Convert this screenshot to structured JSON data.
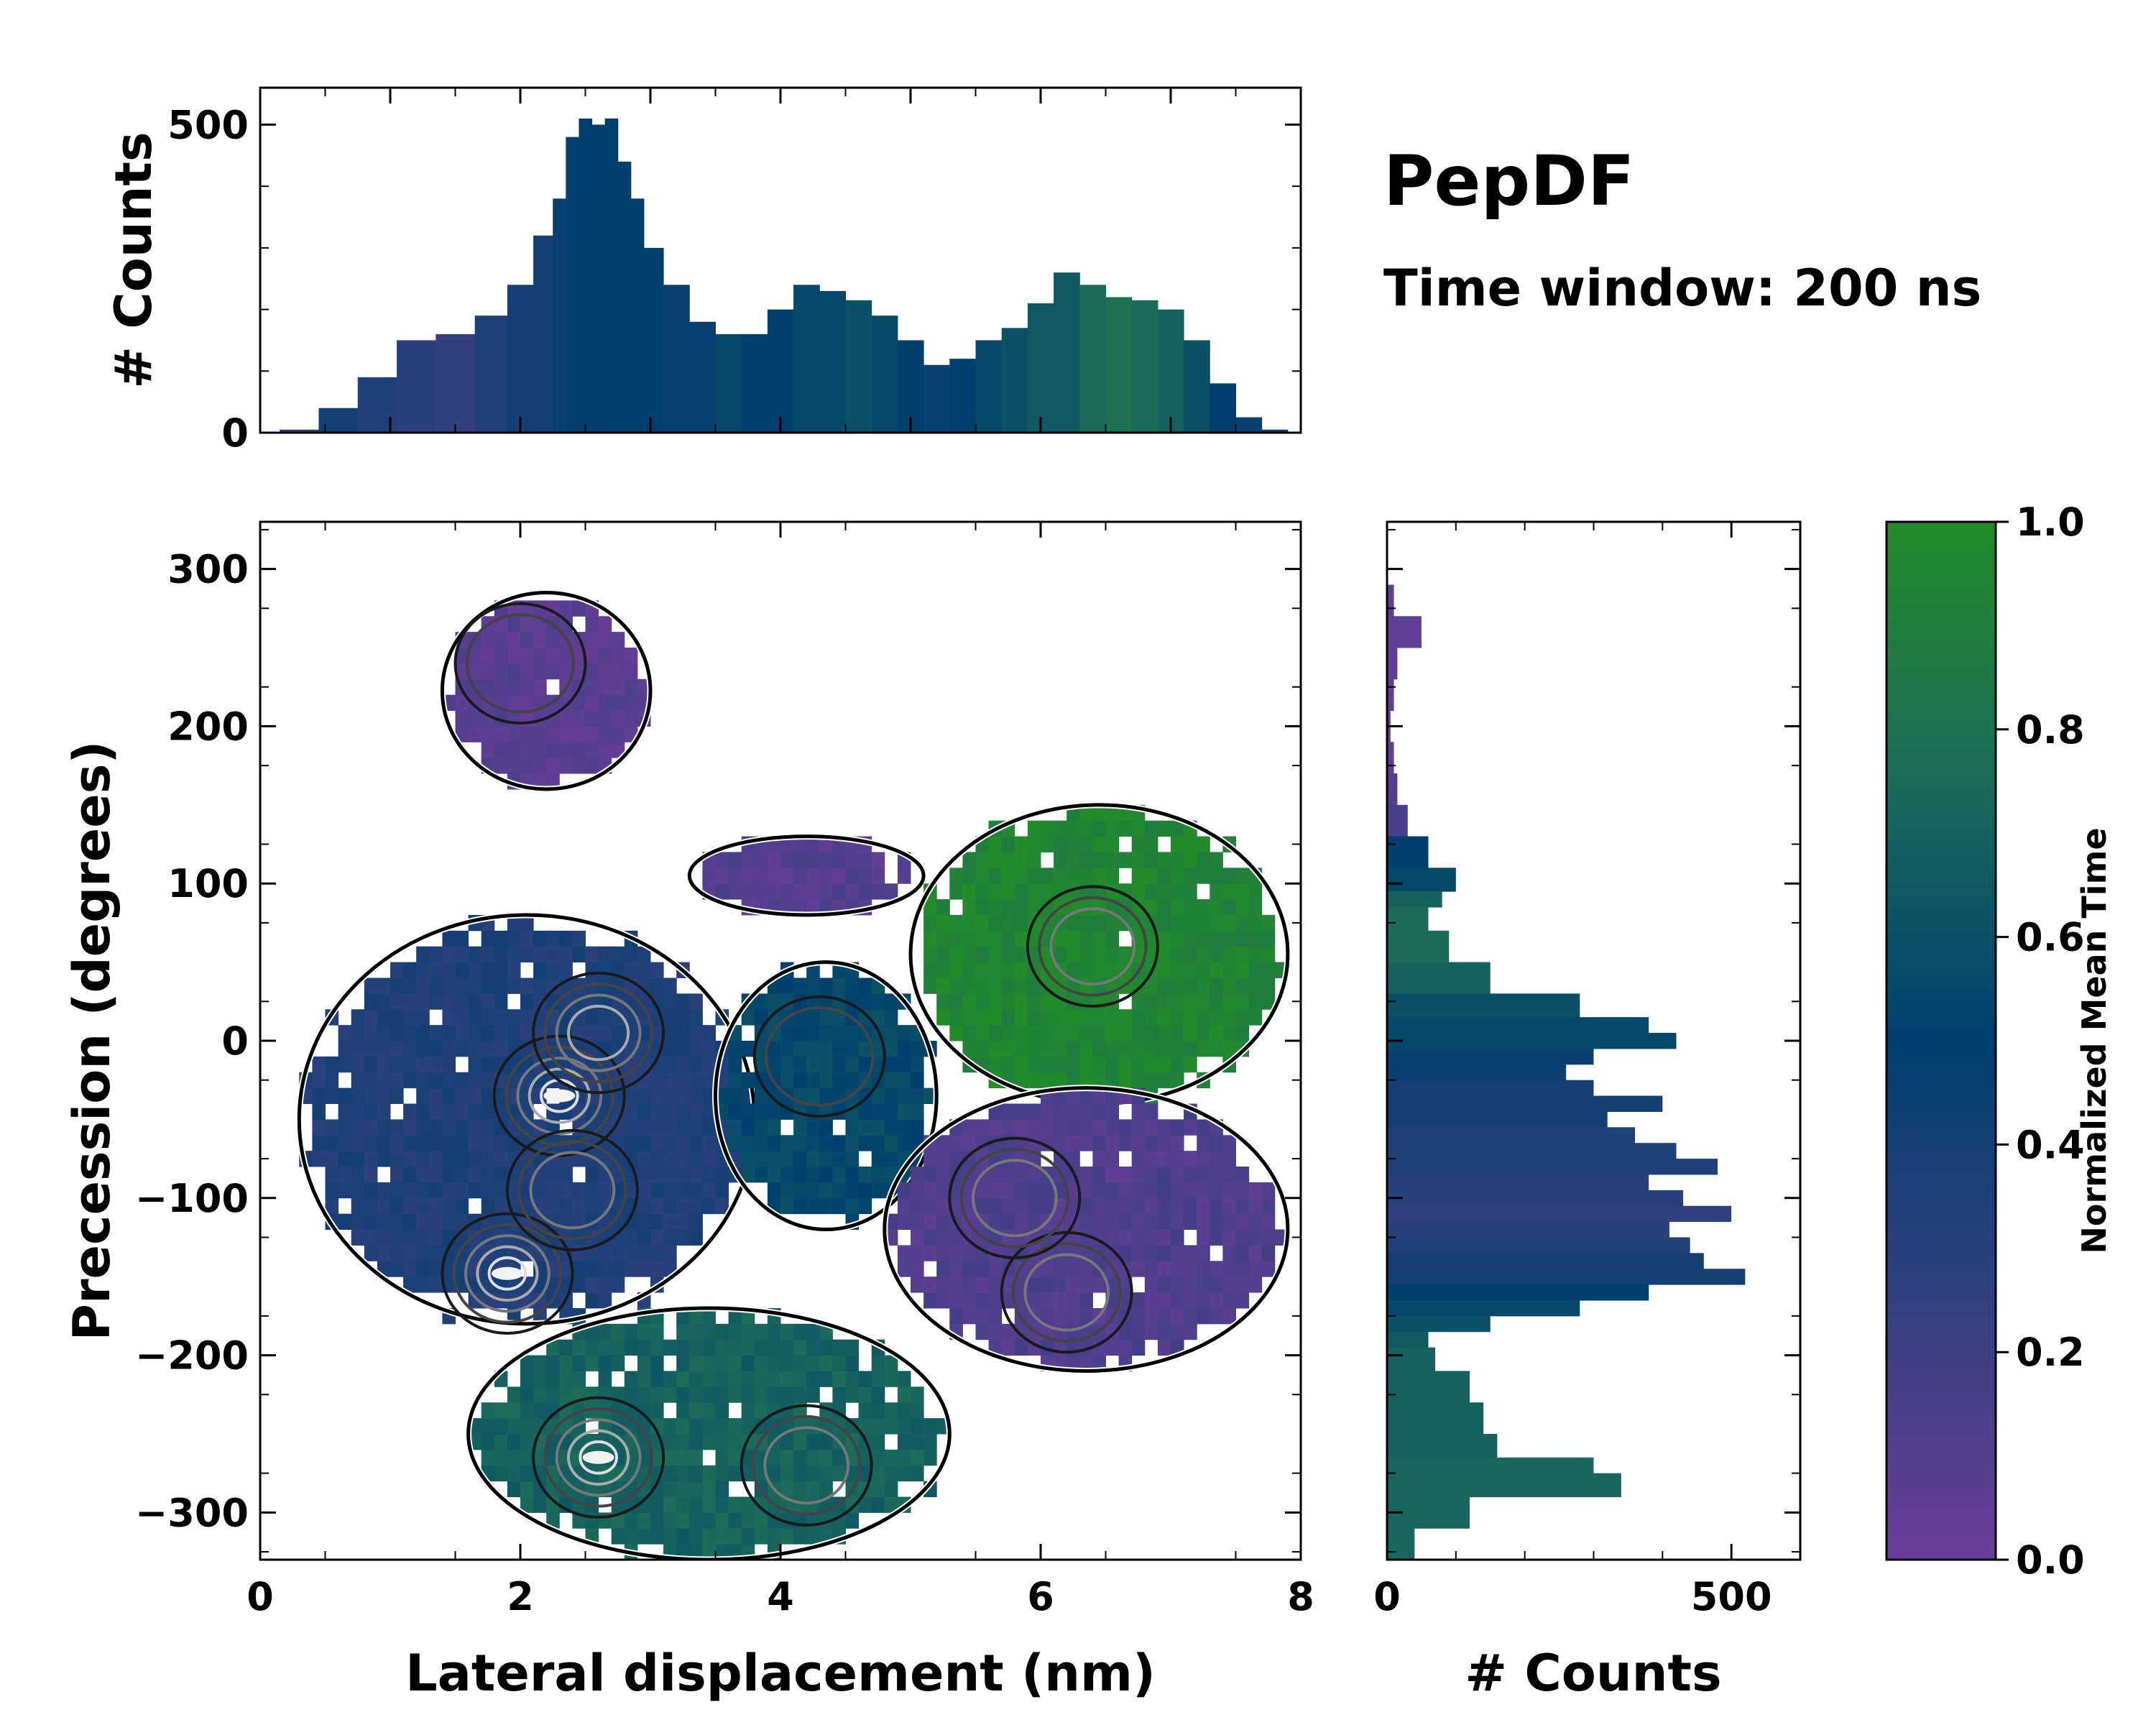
{
  "colors": {
    "cmap": [
      "#6a3d9a",
      "#33407f",
      "#003f6e",
      "#1b6b5a",
      "#238b2a"
    ],
    "contour_outer": "#000000",
    "contour_levels": [
      "#1a1a1a",
      "#444444",
      "#777777",
      "#aaaaaa",
      "#dddddd"
    ]
  },
  "annotation": {
    "title": "PepDF",
    "subtitle": "Time window: 200 ns"
  },
  "chart_data": [
    {
      "id": "joint",
      "type": "heatmap",
      "xlabel": "Lateral displacement (nm)",
      "ylabel": "Precession (degrees)",
      "xlim": [
        0,
        8
      ],
      "ylim": [
        -330,
        330
      ],
      "xticks": [
        0,
        2,
        4,
        6,
        8
      ],
      "xticklabels": [
        "0",
        "2",
        "4",
        "6",
        "8"
      ],
      "yticks": [
        -300,
        -200,
        -100,
        0,
        100,
        200,
        300
      ],
      "yticklabels": [
        "−300",
        "−200",
        "−100",
        "0",
        "100",
        "200",
        "300"
      ],
      "color_metric": "Normalized Mean Time",
      "regions": [
        {
          "name": "top-left purple lobe",
          "x": [
            1.4,
            3.0
          ],
          "y": [
            160,
            285
          ],
          "mean_time": 0.08
        },
        {
          "name": "top-center purple lobe",
          "x": [
            3.3,
            5.1
          ],
          "y": [
            80,
            130
          ],
          "mean_time": 0.1
        },
        {
          "name": "upper-right green lobe",
          "x": [
            5.0,
            7.9
          ],
          "y": [
            -40,
            150
          ],
          "mean_time": 0.95
        },
        {
          "name": "left blue lobe",
          "x": [
            0.3,
            3.8
          ],
          "y": [
            -180,
            80
          ],
          "mean_time": 0.35
        },
        {
          "name": "center mixed lobe",
          "x": [
            3.5,
            5.2
          ],
          "y": [
            -120,
            50
          ],
          "mean_time": 0.55
        },
        {
          "name": "right purple lobe",
          "x": [
            4.8,
            7.9
          ],
          "y": [
            -210,
            -30
          ],
          "mean_time": 0.12
        },
        {
          "name": "bottom teal lobe",
          "x": [
            1.6,
            5.3
          ],
          "y": [
            -330,
            -170
          ],
          "mean_time": 0.7
        }
      ],
      "density_peaks": [
        {
          "x": 2.3,
          "y": -35,
          "level": 5
        },
        {
          "x": 2.6,
          "y": 5,
          "level": 4
        },
        {
          "x": 1.9,
          "y": -148,
          "level": 5
        },
        {
          "x": 2.4,
          "y": -95,
          "level": 3
        },
        {
          "x": 2.6,
          "y": -265,
          "level": 5
        },
        {
          "x": 4.2,
          "y": -270,
          "level": 3
        },
        {
          "x": 6.2,
          "y": -160,
          "level": 3
        },
        {
          "x": 5.8,
          "y": -100,
          "level": 3
        },
        {
          "x": 6.4,
          "y": 60,
          "level": 3
        },
        {
          "x": 4.3,
          "y": -10,
          "level": 2
        },
        {
          "x": 2.0,
          "y": 240,
          "level": 2
        }
      ]
    },
    {
      "id": "top_hist",
      "type": "bar",
      "ylabel": "# Counts",
      "xlim": [
        0,
        8
      ],
      "ylim": [
        0,
        560
      ],
      "yticks": [
        0,
        500
      ],
      "yticklabels": [
        "0",
        "500"
      ],
      "x": [
        0.3,
        0.6,
        0.9,
        1.2,
        1.5,
        1.8,
        2.0,
        2.2,
        2.3,
        2.4,
        2.5,
        2.6,
        2.7,
        2.8,
        2.9,
        3.0,
        3.2,
        3.4,
        3.6,
        3.8,
        4.0,
        4.2,
        4.4,
        4.6,
        4.8,
        5.0,
        5.2,
        5.4,
        5.6,
        5.8,
        6.0,
        6.2,
        6.4,
        6.6,
        6.8,
        7.0,
        7.2,
        7.4,
        7.6,
        7.8
      ],
      "values": [
        5,
        40,
        90,
        150,
        160,
        190,
        240,
        320,
        380,
        480,
        510,
        500,
        510,
        440,
        380,
        300,
        240,
        180,
        160,
        160,
        200,
        240,
        230,
        215,
        190,
        150,
        110,
        120,
        150,
        170,
        210,
        260,
        240,
        220,
        215,
        200,
        150,
        80,
        25,
        5
      ],
      "mean_time": [
        0.3,
        0.4,
        0.35,
        0.3,
        0.25,
        0.35,
        0.4,
        0.4,
        0.45,
        0.5,
        0.5,
        0.5,
        0.5,
        0.5,
        0.5,
        0.5,
        0.45,
        0.45,
        0.55,
        0.5,
        0.5,
        0.55,
        0.55,
        0.6,
        0.55,
        0.5,
        0.45,
        0.5,
        0.55,
        0.6,
        0.65,
        0.65,
        0.75,
        0.8,
        0.75,
        0.7,
        0.6,
        0.5,
        0.45,
        0.4
      ]
    },
    {
      "id": "right_hist",
      "type": "bar",
      "orientation": "horizontal",
      "xlabel": "# Counts",
      "xlim": [
        0,
        600
      ],
      "xticks": [
        0,
        500
      ],
      "xticklabels": [
        "0",
        "500"
      ],
      "ylim": [
        -330,
        330
      ],
      "y": [
        280,
        260,
        240,
        220,
        200,
        180,
        160,
        140,
        120,
        100,
        90,
        80,
        60,
        40,
        20,
        10,
        0,
        -10,
        -20,
        -30,
        -40,
        -50,
        -60,
        -70,
        -80,
        -90,
        -100,
        -110,
        -120,
        -130,
        -140,
        -150,
        -160,
        -170,
        -180,
        -190,
        -200,
        -220,
        -240,
        -260,
        -270,
        -280,
        -300,
        -320
      ],
      "values": [
        10,
        50,
        15,
        10,
        5,
        10,
        15,
        30,
        60,
        100,
        80,
        60,
        90,
        150,
        280,
        380,
        420,
        300,
        260,
        300,
        400,
        320,
        360,
        420,
        480,
        380,
        430,
        500,
        410,
        440,
        460,
        520,
        380,
        280,
        150,
        60,
        70,
        120,
        140,
        160,
        300,
        340,
        120,
        40
      ],
      "mean_time": [
        0.05,
        0.05,
        0.05,
        0.05,
        0.05,
        0.05,
        0.1,
        0.15,
        0.5,
        0.55,
        0.7,
        0.75,
        0.75,
        0.7,
        0.6,
        0.55,
        0.55,
        0.45,
        0.45,
        0.4,
        0.4,
        0.4,
        0.35,
        0.35,
        0.35,
        0.3,
        0.3,
        0.25,
        0.3,
        0.35,
        0.4,
        0.4,
        0.5,
        0.55,
        0.6,
        0.65,
        0.7,
        0.7,
        0.7,
        0.7,
        0.72,
        0.72,
        0.72,
        0.72
      ]
    },
    {
      "id": "colorbar",
      "type": "colorbar",
      "label": "Normalized Mean Time",
      "range": [
        0,
        1
      ],
      "ticks": [
        0.0,
        0.2,
        0.4,
        0.6,
        0.8,
        1.0
      ],
      "ticklabels": [
        "0.0",
        "0.2",
        "0.4",
        "0.6",
        "0.8",
        "1.0"
      ]
    }
  ]
}
